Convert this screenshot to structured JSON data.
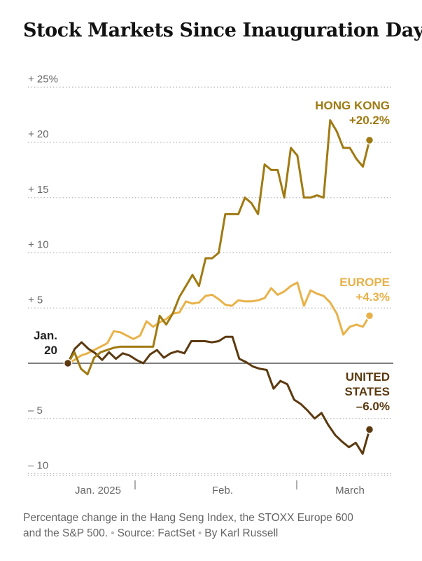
{
  "chart_data": {
    "type": "line",
    "title": "Stock Markets Since Inauguration Day",
    "ylim": [
      -10.5,
      25
    ],
    "y_ticks": [
      {
        "value": 25,
        "label": "+ 25%"
      },
      {
        "value": 20,
        "label": "+ 20"
      },
      {
        "value": 15,
        "label": "+ 15"
      },
      {
        "value": 10,
        "label": "+ 10"
      },
      {
        "value": 5,
        "label": "+  5"
      },
      {
        "value": -5,
        "label": "–  5"
      },
      {
        "value": -10,
        "label": "– 10"
      }
    ],
    "x_ticks": [
      "Jan. 2025",
      "Feb.",
      "March"
    ],
    "start_label": [
      "Jan.",
      "20"
    ],
    "series": [
      {
        "id": "hongkong",
        "label_lines": [
          "HONG KONG",
          "+20.2%"
        ],
        "color": "#a07a12",
        "values": [
          0,
          1.0,
          -0.5,
          -1.0,
          0.5,
          1.0,
          1.2,
          1.4,
          1.5,
          1.5,
          1.5,
          1.5,
          1.5,
          1.5,
          4.3,
          3.5,
          4.5,
          6.0,
          7.0,
          8.0,
          7.0,
          9.5,
          9.5,
          10.0,
          13.5,
          13.5,
          13.5,
          15.0,
          14.5,
          13.5,
          18.0,
          17.5,
          17.5,
          15.0,
          19.5,
          18.8,
          15.0,
          15.0,
          15.2,
          15.0,
          22.0,
          21.0,
          19.5,
          19.5,
          18.5,
          17.8,
          20.2
        ]
      },
      {
        "id": "europe",
        "label_lines": [
          "EUROPE",
          "+4.3%"
        ],
        "color": "#e8b24a",
        "values": [
          0,
          0.3,
          0.7,
          0.9,
          1.2,
          1.5,
          1.8,
          2.9,
          2.8,
          2.5,
          2.2,
          2.5,
          3.8,
          3.3,
          3.7,
          4.0,
          4.5,
          4.6,
          5.6,
          5.4,
          5.5,
          6.1,
          6.2,
          5.8,
          5.3,
          5.2,
          5.7,
          5.6,
          5.6,
          5.7,
          5.9,
          6.8,
          6.2,
          6.5,
          7.0,
          7.3,
          5.2,
          6.6,
          6.3,
          6.1,
          5.5,
          4.5,
          2.6,
          3.3,
          3.5,
          3.3,
          4.3
        ]
      },
      {
        "id": "us",
        "label_lines": [
          "UNITED",
          "STATES",
          "–6.0%"
        ],
        "color": "#5c3a10",
        "values": [
          0,
          1.3,
          1.9,
          1.3,
          0.9,
          0.3,
          1.0,
          0.4,
          0.9,
          0.7,
          0.3,
          0.0,
          0.8,
          1.2,
          0.5,
          0.9,
          1.1,
          0.9,
          2.0,
          2.0,
          2.0,
          1.9,
          2.0,
          2.4,
          2.4,
          0.4,
          0.1,
          -0.3,
          -0.5,
          -0.6,
          -2.3,
          -1.6,
          -1.9,
          -3.3,
          -3.7,
          -4.3,
          -5.0,
          -4.5,
          -5.6,
          -6.5,
          -7.1,
          -7.6,
          -7.2,
          -8.2,
          -6.0
        ]
      }
    ],
    "grid": true
  },
  "caption": {
    "line1": "Percentage change in the Hang Seng Index, the STOXX Europe 600",
    "line2": "and the S&P 500.",
    "source": "Source: FactSet",
    "byline": "By Karl Russell"
  }
}
